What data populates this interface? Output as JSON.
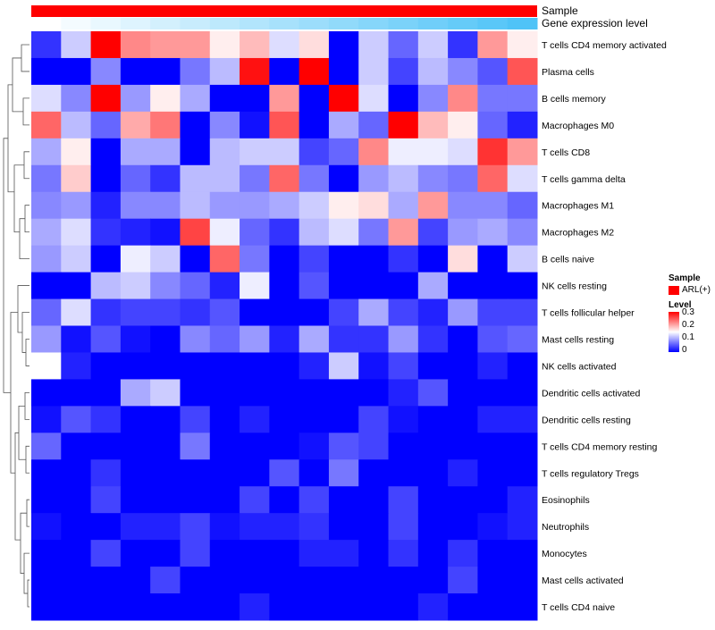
{
  "chart_data": {
    "type": "heatmap",
    "title": "",
    "annotation_tracks": [
      {
        "name": "Sample",
        "color": "#ff0000"
      },
      {
        "name": "Gene expression level",
        "gradient": [
          "#ffffff",
          "#4fc3f7"
        ]
      }
    ],
    "row_labels": [
      "T cells CD4 memory activated",
      "Plasma cells",
      "B cells memory",
      "Macrophages M0",
      "T cells CD8",
      "T cells gamma delta",
      "Macrophages M1",
      "Macrophages M2",
      "B cells naive",
      "NK cells resting",
      "T cells follicular helper",
      "Mast cells resting",
      "NK cells activated",
      "Dendritic cells activated",
      "Dendritic cells resting",
      "T cells CD4 memory resting",
      "T cells regulatory  Tregs",
      "Eosinophils",
      "Neutrophils",
      "Monocytes",
      "Mast cells activated",
      "T cells CD4 naive"
    ],
    "n_columns": 17,
    "values": [
      [
        0.03,
        0.12,
        0.3,
        0.22,
        0.21,
        0.21,
        0.16,
        0.19,
        0.13,
        0.17,
        0.0,
        0.12,
        0.06,
        0.12,
        0.03,
        0.21,
        0.16
      ],
      [
        0.0,
        0.0,
        0.08,
        0.0,
        0.0,
        0.07,
        0.11,
        0.29,
        0.0,
        0.3,
        0.0,
        0.12,
        0.04,
        0.11,
        0.08,
        0.05,
        0.25
      ],
      [
        0.13,
        0.08,
        0.3,
        0.09,
        0.16,
        0.1,
        0.0,
        0.0,
        0.21,
        0.0,
        0.3,
        0.13,
        0.0,
        0.08,
        0.22,
        0.07,
        0.07
      ],
      [
        0.24,
        0.11,
        0.06,
        0.2,
        0.23,
        0.0,
        0.08,
        0.01,
        0.25,
        0.0,
        0.1,
        0.06,
        0.3,
        0.19,
        0.16,
        0.06,
        0.02
      ],
      [
        0.1,
        0.16,
        0.0,
        0.1,
        0.1,
        0.0,
        0.11,
        0.12,
        0.12,
        0.04,
        0.06,
        0.22,
        0.14,
        0.14,
        0.13,
        0.27,
        0.21
      ],
      [
        0.07,
        0.18,
        0.0,
        0.06,
        0.03,
        0.11,
        0.11,
        0.07,
        0.24,
        0.07,
        0.0,
        0.09,
        0.11,
        0.08,
        0.07,
        0.24,
        0.13
      ],
      [
        0.08,
        0.09,
        0.02,
        0.08,
        0.08,
        0.11,
        0.09,
        0.09,
        0.1,
        0.12,
        0.16,
        0.17,
        0.1,
        0.21,
        0.08,
        0.08,
        0.06
      ],
      [
        0.1,
        0.13,
        0.03,
        0.02,
        0.01,
        0.26,
        0.14,
        0.06,
        0.03,
        0.11,
        0.13,
        0.07,
        0.21,
        0.04,
        0.09,
        0.1,
        0.08
      ],
      [
        0.09,
        0.12,
        0.0,
        0.14,
        0.12,
        0.0,
        0.24,
        0.07,
        0.0,
        0.04,
        0.0,
        0.0,
        0.03,
        0.0,
        0.17,
        0.0,
        0.12
      ],
      [
        0.0,
        0.0,
        0.11,
        0.12,
        0.08,
        0.06,
        0.02,
        0.14,
        0.0,
        0.05,
        0.0,
        0.0,
        0.0,
        0.1,
        0.0,
        0.0,
        0.0
      ],
      [
        0.06,
        0.13,
        0.03,
        0.04,
        0.04,
        0.03,
        0.05,
        0.0,
        0.0,
        0.0,
        0.04,
        0.1,
        0.04,
        0.02,
        0.09,
        0.04,
        0.04
      ],
      [
        0.09,
        0.01,
        0.05,
        0.01,
        0.0,
        0.08,
        0.06,
        0.09,
        0.02,
        0.1,
        0.03,
        0.03,
        0.09,
        0.03,
        0.0,
        0.05,
        0.06
      ],
      [
        0.15,
        0.02,
        0.0,
        0.0,
        0.0,
        0.0,
        0.0,
        0.0,
        0.0,
        0.02,
        0.12,
        0.01,
        0.04,
        0.0,
        0.0,
        0.02,
        0.0
      ],
      [
        0.0,
        0.0,
        0.0,
        0.1,
        0.12,
        0.0,
        0.0,
        0.0,
        0.0,
        0.0,
        0.0,
        0.0,
        0.02,
        0.05,
        0.0,
        0.0,
        0.0
      ],
      [
        0.01,
        0.05,
        0.03,
        0.0,
        0.0,
        0.04,
        0.0,
        0.02,
        0.0,
        0.0,
        0.0,
        0.04,
        0.01,
        0.0,
        0.0,
        0.02,
        0.02
      ],
      [
        0.06,
        0.0,
        0.0,
        0.0,
        0.0,
        0.07,
        0.0,
        0.0,
        0.0,
        0.01,
        0.05,
        0.04,
        0.0,
        0.0,
        0.0,
        0.0,
        0.0
      ],
      [
        0.0,
        0.0,
        0.03,
        0.0,
        0.0,
        0.0,
        0.0,
        0.0,
        0.05,
        0.0,
        0.07,
        0.0,
        0.0,
        0.0,
        0.02,
        0.0,
        0.0
      ],
      [
        0.0,
        0.0,
        0.04,
        0.0,
        0.0,
        0.0,
        0.0,
        0.04,
        0.0,
        0.04,
        0.0,
        0.0,
        0.04,
        0.0,
        0.0,
        0.0,
        0.02
      ],
      [
        0.01,
        0.0,
        0.0,
        0.02,
        0.02,
        0.04,
        0.01,
        0.02,
        0.02,
        0.03,
        0.0,
        0.0,
        0.04,
        0.0,
        0.0,
        0.01,
        0.02
      ],
      [
        0.0,
        0.0,
        0.04,
        0.0,
        0.0,
        0.04,
        0.0,
        0.0,
        0.0,
        0.02,
        0.02,
        0.0,
        0.03,
        0.0,
        0.03,
        0.0,
        0.0
      ],
      [
        0.0,
        0.0,
        0.0,
        0.0,
        0.04,
        0.0,
        0.0,
        0.0,
        0.0,
        0.0,
        0.0,
        0.0,
        0.0,
        0.0,
        0.04,
        0.0,
        0.0
      ],
      [
        0.0,
        0.0,
        0.0,
        0.0,
        0.0,
        0.0,
        0.0,
        0.02,
        0.0,
        0.0,
        0.0,
        0.0,
        0.0,
        0.02,
        0.0,
        0.0,
        0.0
      ]
    ],
    "color_scale": {
      "low": "#0000ff",
      "mid": "#ffffff",
      "high": "#ff0000",
      "min": 0,
      "max": 0.3,
      "mid_value": 0.15
    },
    "legend": {
      "sample_title": "Sample",
      "sample_entry": "ARL(+)",
      "level_title": "Level",
      "ticks": [
        "0.3",
        "0.2",
        "0.1",
        "0"
      ]
    },
    "dendrogram": "rows, left side"
  }
}
